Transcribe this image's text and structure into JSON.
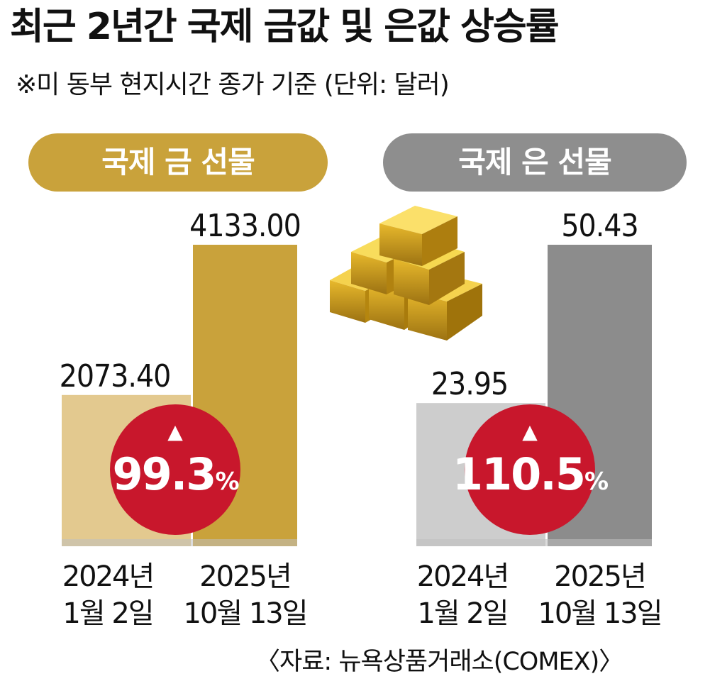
{
  "title": "최근 2년간 국제 금값 및 은값 상승률",
  "subtitle": "※미 동부 현지시간 종가 기준  (단위: 달러)",
  "source": "〈자료: 뉴욕상품거래소(COMEX)〉",
  "colors": {
    "gold_pill": "#c9a23b",
    "gold_bar_2024": "#e3c98f",
    "gold_bar_2025": "#c9a23b",
    "silver_pill": "#8e8e8e",
    "silver_bar_2024": "#cdcdcd",
    "silver_bar_2025": "#8c8c8c",
    "badge": "#c8172c"
  },
  "chart_data": [
    {
      "type": "bar",
      "title": "국제 금 선물",
      "categories": [
        "2024년\n1월 2일",
        "2025년\n10월 13일"
      ],
      "values": [
        2073.4,
        4133.0
      ],
      "value_labels": [
        "2073.40",
        "4133.00"
      ],
      "change": {
        "arrow": "▲",
        "value": "99.3",
        "unit": "%"
      }
    },
    {
      "type": "bar",
      "title": "국제 은 선물",
      "categories": [
        "2024년\n1월 2일",
        "2025년\n10월 13일"
      ],
      "values": [
        23.95,
        50.43
      ],
      "value_labels": [
        "23.95",
        "50.43"
      ],
      "change": {
        "arrow": "▲",
        "value": "110.5",
        "unit": "%"
      }
    }
  ],
  "illustration": "gold-bars-icon"
}
